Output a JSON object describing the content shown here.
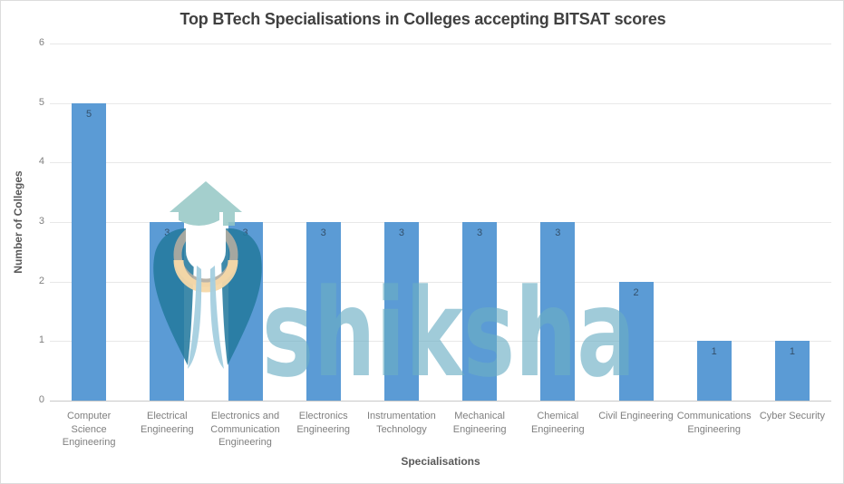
{
  "chart_data": {
    "type": "bar",
    "title": "Top BTech Specialisations in Colleges accepting BITSAT scores",
    "xlabel": "Specialisations",
    "ylabel": "Number of Colleges",
    "categories": [
      "Computer Science Engineering",
      "Electrical Engineering",
      "Electronics and Communication Engineering",
      "Electronics Engineering",
      "Instrumentation Technology",
      "Mechanical Engineering",
      "Chemical Engineering",
      "Civil Engineering",
      "Communications Engineering",
      "Cyber Security"
    ],
    "categories_wrapped": [
      [
        "Computer",
        "Science",
        "Engineering"
      ],
      [
        "Electrical",
        "Engineering"
      ],
      [
        "Electronics and",
        "Communication",
        "Engineering"
      ],
      [
        "Electronics",
        "Engineering"
      ],
      [
        "Instrumentation",
        "Technology"
      ],
      [
        "Mechanical",
        "Engineering"
      ],
      [
        "Chemical",
        "Engineering"
      ],
      [
        "Civil Engineering"
      ],
      [
        "Communications",
        "Engineering"
      ],
      [
        "Cyber Security"
      ]
    ],
    "values": [
      5,
      3,
      3,
      3,
      3,
      3,
      3,
      2,
      1,
      1
    ],
    "ylim": [
      0,
      6
    ],
    "yticks": [
      0,
      1,
      2,
      3,
      4,
      5,
      6
    ],
    "grid": true,
    "legend": false,
    "data_labels_position": "inside-end",
    "bar_color": "#5B9BD5",
    "data_label_color": "#33506B"
  },
  "watermark": {
    "brand_text": "shiksha",
    "colors": {
      "cap": "rgba(148,199,196,0.85)",
      "wing": "rgba(36,122,158,0.88)",
      "drop": "rgba(164,207,223,0.95)",
      "collar_orange": "rgba(246,216,168,0.95)",
      "collar_gray": "rgba(178,172,160,0.9)",
      "text": "rgba(107,174,196,0.64)"
    }
  }
}
